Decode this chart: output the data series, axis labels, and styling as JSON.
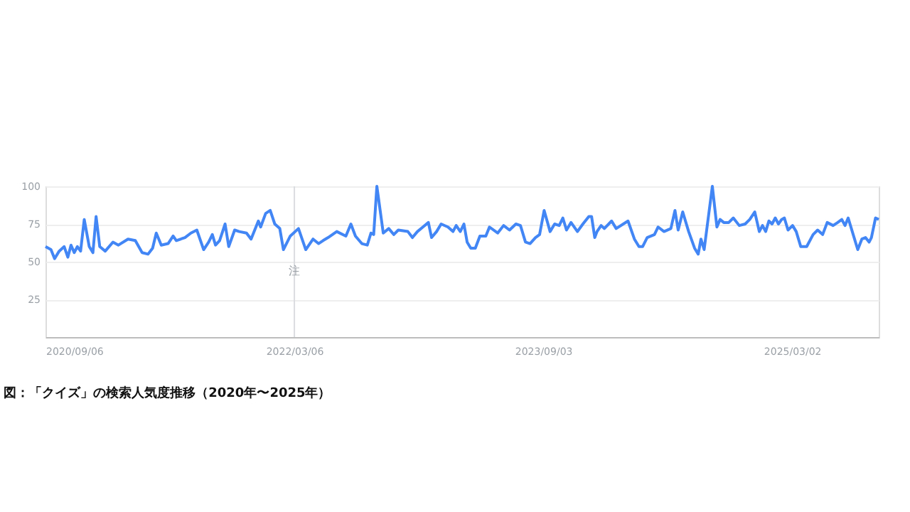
{
  "chart_data": {
    "type": "line",
    "x": [
      "2020-09-06",
      "2020-09-18",
      "2020-09-26",
      "2020-10-06",
      "2020-10-17",
      "2020-10-25",
      "2020-11-01",
      "2020-11-08",
      "2020-11-15",
      "2020-11-22",
      "2020-11-30",
      "2020-12-11",
      "2020-12-19",
      "2020-12-26",
      "2021-01-03",
      "2021-01-15",
      "2021-02-01",
      "2021-02-13",
      "2021-03-06",
      "2021-03-22",
      "2021-04-06",
      "2021-04-19",
      "2021-04-29",
      "2021-05-07",
      "2021-05-18",
      "2021-06-02",
      "2021-06-13",
      "2021-06-20",
      "2021-07-09",
      "2021-07-22",
      "2021-08-04",
      "2021-08-19",
      "2021-08-30",
      "2021-09-07",
      "2021-09-14",
      "2021-09-23",
      "2021-10-05",
      "2021-10-13",
      "2021-10-26",
      "2021-11-05",
      "2021-11-21",
      "2021-12-01",
      "2021-12-17",
      "2021-12-22",
      "2022-01-02",
      "2022-01-12",
      "2022-01-22",
      "2022-02-02",
      "2022-02-10",
      "2022-02-25",
      "2022-03-15",
      "2022-03-31",
      "2022-04-16",
      "2022-04-28",
      "2022-05-08",
      "2022-05-19",
      "2022-06-07",
      "2022-06-27",
      "2022-07-08",
      "2022-07-18",
      "2022-08-01",
      "2022-08-13",
      "2022-08-21",
      "2022-08-27",
      "2022-09-03",
      "2022-09-17",
      "2022-09-29",
      "2022-10-10",
      "2022-10-20",
      "2022-11-10",
      "2022-11-20",
      "2022-12-01",
      "2022-12-13",
      "2022-12-25",
      "2023-01-01",
      "2023-01-12",
      "2023-01-22",
      "2023-02-06",
      "2023-02-17",
      "2023-02-24",
      "2023-03-05",
      "2023-03-13",
      "2023-03-20",
      "2023-03-28",
      "2023-04-07",
      "2023-04-17",
      "2023-04-30",
      "2023-05-08",
      "2023-05-26",
      "2023-06-08",
      "2023-06-21",
      "2023-07-05",
      "2023-07-15",
      "2023-07-26",
      "2023-08-05",
      "2023-08-17",
      "2023-08-26",
      "2023-09-05",
      "2023-09-18",
      "2023-09-28",
      "2023-10-08",
      "2023-10-16",
      "2023-10-24",
      "2023-11-03",
      "2023-11-17",
      "2023-11-29",
      "2023-12-12",
      "2023-12-18",
      "2023-12-25",
      "2023-12-30",
      "2024-01-08",
      "2024-01-15",
      "2024-01-31",
      "2024-02-10",
      "2024-03-07",
      "2024-03-21",
      "2024-03-31",
      "2024-04-08",
      "2024-04-18",
      "2024-05-04",
      "2024-05-12",
      "2024-05-25",
      "2024-06-09",
      "2024-06-18",
      "2024-06-25",
      "2024-07-05",
      "2024-07-18",
      "2024-07-31",
      "2024-08-08",
      "2024-08-14",
      "2024-08-21",
      "2024-09-08",
      "2024-09-18",
      "2024-09-25",
      "2024-10-03",
      "2024-10-14",
      "2024-10-24",
      "2024-11-06",
      "2024-11-19",
      "2024-11-29",
      "2024-12-10",
      "2024-12-20",
      "2024-12-27",
      "2025-01-03",
      "2025-01-10",
      "2025-01-17",
      "2025-01-24",
      "2025-01-31",
      "2025-02-07",
      "2025-02-13",
      "2025-02-21",
      "2025-03-03",
      "2025-03-11",
      "2025-03-21",
      "2025-04-03",
      "2025-04-17",
      "2025-04-27",
      "2025-05-08",
      "2025-05-18",
      "2025-05-31",
      "2025-06-10",
      "2025-06-19",
      "2025-06-26",
      "2025-07-03",
      "2025-07-14",
      "2025-07-24",
      "2025-08-02",
      "2025-08-10",
      "2025-08-18",
      "2025-08-23",
      "2025-09-01",
      "2025-09-08"
    ],
    "series": [
      {
        "color": "#4285f4",
        "values": [
          60,
          58,
          52,
          57,
          60,
          53,
          61,
          56,
          60,
          57,
          78,
          60,
          56,
          80,
          60,
          57,
          63,
          61,
          65,
          64,
          56,
          55,
          59,
          69,
          61,
          62,
          67,
          64,
          66,
          69,
          71,
          58,
          63,
          68,
          61,
          64,
          75,
          60,
          71,
          70,
          69,
          65,
          77,
          73,
          82,
          84,
          75,
          72,
          58,
          67,
          72,
          58,
          65,
          62,
          64,
          66,
          70,
          67,
          75,
          67,
          62,
          61,
          69,
          68,
          100,
          69,
          72,
          68,
          71,
          70,
          66,
          70,
          73,
          76,
          66,
          70,
          75,
          73,
          70,
          74,
          70,
          75,
          63,
          59,
          59,
          67,
          67,
          73,
          69,
          74,
          71,
          75,
          74,
          63,
          62,
          66,
          68,
          84,
          70,
          75,
          74,
          79,
          71,
          76,
          70,
          75,
          80,
          80,
          66,
          70,
          74,
          72,
          77,
          72,
          77,
          65,
          60,
          60,
          66,
          68,
          73,
          70,
          72,
          84,
          71,
          83,
          70,
          59,
          55,
          65,
          58,
          100,
          73,
          78,
          76,
          76,
          79,
          74,
          75,
          78,
          83,
          70,
          74,
          70,
          77,
          75,
          79,
          75,
          78,
          79,
          71,
          74,
          70,
          60,
          60,
          68,
          71,
          68,
          76,
          74,
          76,
          78,
          74,
          79,
          68,
          58,
          65,
          66,
          63,
          66,
          79,
          78
        ]
      }
    ],
    "xlim": [
      "2020-09-06",
      "2025-09-08"
    ],
    "xticks": [
      {
        "value": "2020-09-06",
        "label": "2020/09/06"
      },
      {
        "value": "2022-03-06",
        "label": "2022/03/06"
      },
      {
        "value": "2023-09-03",
        "label": "2023/09/03"
      },
      {
        "value": "2025-03-02",
        "label": "2025/03/02"
      }
    ],
    "ylim": [
      0,
      100
    ],
    "yticks": [
      {
        "value": 0,
        "label": null
      },
      25,
      50,
      75,
      100
    ],
    "grid": "y",
    "marker": "none",
    "line_style": "solid",
    "ref_lines": [
      {
        "axis": "x",
        "value": "2022-03-06",
        "label": "注",
        "color": "#dadce0"
      }
    ],
    "annotations": [
      "図：「クイズ」の検索人気度推移（2020年〜2025年）"
    ]
  }
}
